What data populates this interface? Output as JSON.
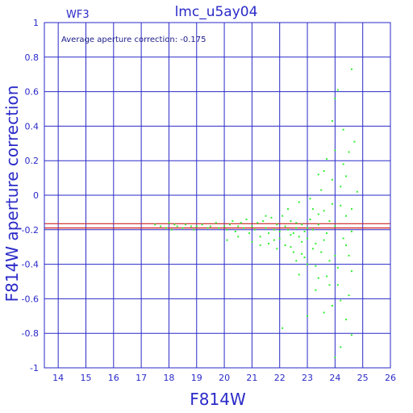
{
  "chart_data": {
    "type": "scatter",
    "title": "lmc_u5ay04",
    "chip": "WF3",
    "annotation": "Average aperture correction: -0.175",
    "xlabel": "F814W",
    "ylabel": "F814W aperture correction",
    "xlim": [
      13.5,
      26
    ],
    "ylim": [
      -1,
      1
    ],
    "xticks": [
      14,
      15,
      16,
      17,
      18,
      19,
      20,
      21,
      22,
      23,
      24,
      25,
      26
    ],
    "yticks": [
      -1,
      -0.8,
      -0.6,
      -0.4,
      -0.2,
      0,
      0.2,
      0.4,
      0.6,
      0.8,
      1
    ],
    "xtick_labels": [
      "14",
      "15",
      "16",
      "17",
      "18",
      "19",
      "20",
      "21",
      "22",
      "23",
      "24",
      "25",
      "26"
    ],
    "ytick_labels": [
      "-1",
      "-0.8",
      "-0.6",
      "-0.4",
      "-0.2",
      "0",
      "0.2",
      "0.4",
      "0.6",
      "0.8",
      "1"
    ],
    "grid": true,
    "reference_lines": [
      -0.165,
      -0.19
    ],
    "colors": {
      "axes": "#2a2ac8",
      "grid": "#2a2ac8",
      "points": "#33ee33",
      "ref_line": "#cc2222"
    },
    "series": [
      {
        "points": [
          [
            17.5,
            -0.17
          ],
          [
            17.7,
            -0.18
          ],
          [
            17.9,
            -0.19
          ],
          [
            18.0,
            -0.16
          ],
          [
            18.1,
            -0.2
          ],
          [
            18.2,
            -0.17
          ],
          [
            18.3,
            -0.18
          ],
          [
            18.5,
            -0.19
          ],
          [
            18.6,
            -0.17
          ],
          [
            18.8,
            -0.18
          ],
          [
            18.9,
            -0.2
          ],
          [
            19.0,
            -0.18
          ],
          [
            19.2,
            -0.17
          ],
          [
            19.4,
            -0.19
          ],
          [
            19.5,
            -0.18
          ],
          [
            19.7,
            -0.16
          ],
          [
            19.8,
            -0.19
          ],
          [
            20.0,
            -0.18
          ],
          [
            20.1,
            -0.2
          ],
          [
            20.2,
            -0.17
          ],
          [
            20.3,
            -0.15
          ],
          [
            20.4,
            -0.21
          ],
          [
            20.5,
            -0.18
          ],
          [
            20.6,
            -0.16
          ],
          [
            20.7,
            -0.19
          ],
          [
            20.8,
            -0.14
          ],
          [
            20.9,
            -0.22
          ],
          [
            21.0,
            -0.18
          ],
          [
            21.1,
            -0.2
          ],
          [
            21.2,
            -0.16
          ],
          [
            21.3,
            -0.24
          ],
          [
            21.4,
            -0.15
          ],
          [
            21.5,
            -0.19
          ],
          [
            21.6,
            -0.22
          ],
          [
            21.7,
            -0.13
          ],
          [
            21.8,
            -0.26
          ],
          [
            21.9,
            -0.17
          ],
          [
            22.0,
            -0.21
          ],
          [
            22.1,
            -0.12
          ],
          [
            22.2,
            -0.29
          ],
          [
            20.1,
            -0.26
          ],
          [
            20.5,
            -0.24
          ],
          [
            21.0,
            -0.27
          ],
          [
            21.3,
            -0.29
          ],
          [
            21.5,
            -0.12
          ],
          [
            21.9,
            -0.31
          ],
          [
            22.3,
            -0.08
          ],
          [
            22.4,
            -0.23
          ],
          [
            22.5,
            -0.33
          ],
          [
            22.6,
            -0.16
          ],
          [
            22.7,
            -0.04
          ],
          [
            22.8,
            -0.27
          ],
          [
            22.9,
            -0.36
          ],
          [
            23.0,
            -0.19
          ],
          [
            23.1,
            -0.02
          ],
          [
            23.2,
            -0.31
          ],
          [
            23.3,
            -0.41
          ],
          [
            23.4,
            -0.11
          ],
          [
            23.5,
            0.03
          ],
          [
            23.6,
            -0.26
          ],
          [
            23.7,
            -0.47
          ],
          [
            23.8,
            -0.15
          ],
          [
            23.9,
            0.09
          ],
          [
            24.0,
            -0.35
          ],
          [
            24.1,
            -0.52
          ],
          [
            24.2,
            -0.06
          ],
          [
            24.3,
            0.18
          ],
          [
            24.4,
            -0.29
          ],
          [
            24.5,
            -0.58
          ],
          [
            24.6,
            -0.21
          ],
          [
            24.7,
            0.31
          ],
          [
            24.1,
            0.61
          ],
          [
            24.6,
            0.73
          ],
          [
            24.0,
            0.56
          ],
          [
            23.9,
            0.43
          ],
          [
            24.3,
            0.38
          ],
          [
            24.5,
            0.25
          ],
          [
            24.8,
            0.02
          ],
          [
            23.4,
            0.12
          ],
          [
            23.7,
            0.21
          ],
          [
            22.1,
            -0.77
          ],
          [
            23.0,
            -0.7
          ],
          [
            23.9,
            -0.64
          ],
          [
            24.2,
            -0.88
          ],
          [
            24.6,
            -0.81
          ],
          [
            23.3,
            -0.55
          ],
          [
            24.0,
            -0.94
          ],
          [
            22.7,
            -0.46
          ],
          [
            23.6,
            -0.68
          ],
          [
            24.4,
            -0.72
          ],
          [
            22.2,
            -0.18
          ],
          [
            22.3,
            -0.2
          ],
          [
            22.4,
            -0.15
          ],
          [
            22.5,
            -0.22
          ],
          [
            22.6,
            -0.19
          ],
          [
            22.7,
            -0.24
          ],
          [
            22.8,
            -0.17
          ],
          [
            22.9,
            -0.21
          ],
          [
            23.0,
            -0.25
          ],
          [
            23.1,
            -0.14
          ],
          [
            23.2,
            -0.2
          ],
          [
            23.3,
            -0.28
          ],
          [
            23.4,
            -0.17
          ],
          [
            23.5,
            -0.33
          ],
          [
            23.6,
            -0.09
          ],
          [
            23.7,
            -0.22
          ],
          [
            23.8,
            -0.38
          ],
          [
            23.9,
            -0.05
          ],
          [
            24.0,
            -0.18
          ],
          [
            24.1,
            -0.42
          ],
          [
            24.2,
            0.05
          ],
          [
            24.3,
            -0.25
          ],
          [
            24.4,
            -0.12
          ],
          [
            24.5,
            -0.35
          ],
          [
            24.6,
            -0.08
          ],
          [
            22.0,
            -0.25
          ],
          [
            21.8,
            -0.2
          ],
          [
            21.6,
            -0.28
          ],
          [
            22.4,
            -0.3
          ],
          [
            22.8,
            -0.34
          ],
          [
            23.2,
            -0.08
          ],
          [
            23.6,
            0.14
          ],
          [
            24.0,
            0.26
          ],
          [
            24.4,
            0.11
          ],
          [
            23.8,
            -0.52
          ],
          [
            24.2,
            -0.61
          ],
          [
            24.6,
            -0.44
          ],
          [
            23.4,
            -0.48
          ],
          [
            23.0,
            -0.4
          ],
          [
            22.6,
            -0.38
          ]
        ]
      }
    ]
  }
}
